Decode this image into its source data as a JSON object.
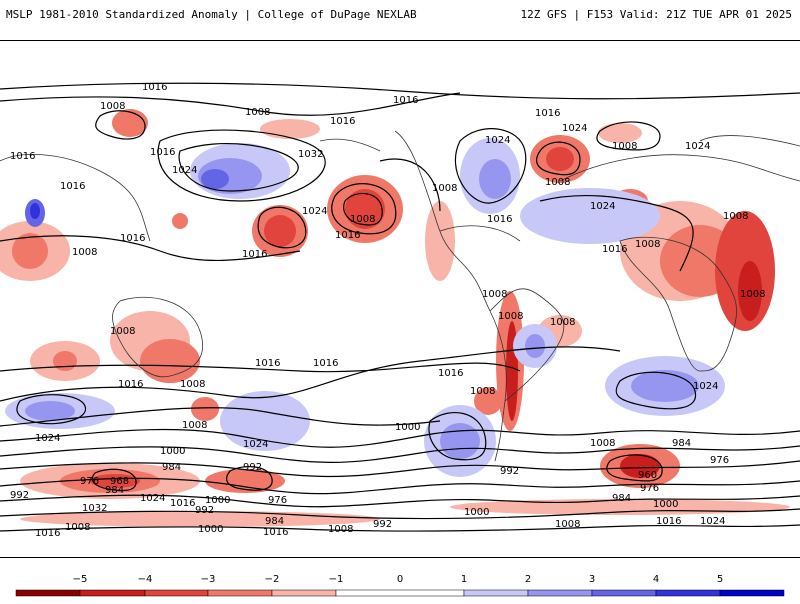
{
  "header": {
    "left_title": "MSLP 1981-2010 Standardized Anomaly | College of DuPage NEXLAB",
    "right_title": "12Z GFS | F153 Valid: 21Z TUE APR 01 2025"
  },
  "colors": {
    "neg5": "#8b0000",
    "neg4": "#c81e1e",
    "neg3": "#e0443c",
    "neg2": "#f07868",
    "neg1": "#f8b4a8",
    "pos1": "#c8c8f8",
    "pos2": "#9696f0",
    "pos3": "#6464e6",
    "pos4": "#3232dc",
    "pos5": "#0000c8"
  },
  "isobar_labels": [
    "1016",
    "1008",
    "1008",
    "1016",
    "1016",
    "1024",
    "1016",
    "1008",
    "1024",
    "1016",
    "1024",
    "1016",
    "1032",
    "1016",
    "1008",
    "1008",
    "1024",
    "1024",
    "1016",
    "1016",
    "1008",
    "1016",
    "1008",
    "1024",
    "1016",
    "1008",
    "1008",
    "1008",
    "1016",
    "1008",
    "1008",
    "1008",
    "1016",
    "1016",
    "1024",
    "1008",
    "1024",
    "1008",
    "1008",
    "1016",
    "1000",
    "1016",
    "1024",
    "1008",
    "1000",
    "984",
    "992",
    "976",
    "992",
    "984",
    "984",
    "960",
    "968",
    "976",
    "984",
    "976",
    "1024",
    "1016",
    "1000",
    "992",
    "1032",
    "1016",
    "1008",
    "1000",
    "1016",
    "984",
    "1008",
    "976",
    "992",
    "1000",
    "1016",
    "1024",
    "1008",
    "992",
    "1000",
    "1008"
  ],
  "colorbar": {
    "ticks": [
      "−5",
      "−4",
      "−3",
      "−2",
      "−1",
      "0",
      "1",
      "2",
      "3",
      "4",
      "5"
    ]
  }
}
